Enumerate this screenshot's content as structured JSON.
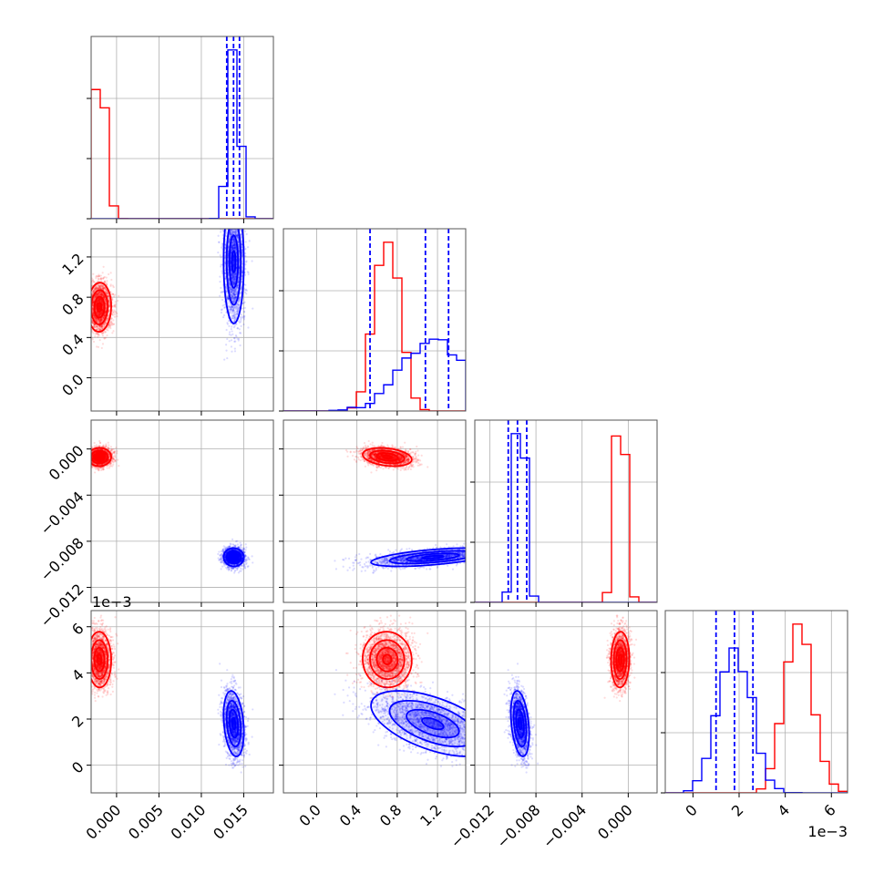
{
  "chart_data": {
    "type": "corner",
    "colors": {
      "red_series": "#ff0000",
      "blue_series": "#0000ff",
      "grid": "#b0b0b0",
      "frame": "#555555"
    },
    "grid": true,
    "quantile_lines": "dashed, blue series only",
    "offset_labels": {
      "p3_y": "1e−3",
      "p3_x": "1e−3"
    },
    "params": [
      {
        "range": [
          -0.003,
          0.0185
        ],
        "ticks": [
          "0.000",
          "0.005",
          "0.010",
          "0.015"
        ],
        "tick_values": [
          0.0,
          0.005,
          0.01,
          0.015
        ]
      },
      {
        "range": [
          -0.33,
          1.48
        ],
        "ticks": [
          "0.0",
          "0.4",
          "0.8",
          "1.2"
        ],
        "tick_values": [
          0.0,
          0.4,
          0.8,
          1.2
        ]
      },
      {
        "range": [
          -0.0133,
          0.0025
        ],
        "ticks": [
          "−0.012",
          "−0.008",
          "−0.004",
          "0.000"
        ],
        "tick_values": [
          -0.012,
          -0.008,
          -0.004,
          0.0
        ]
      },
      {
        "range": [
          -0.0012,
          0.0067
        ],
        "ticks": [
          "0",
          "2",
          "4",
          "6"
        ],
        "tick_values": [
          0.0,
          0.002,
          0.004,
          0.006
        ]
      }
    ],
    "series": [
      {
        "color": "#ff0000",
        "means": [
          -0.002,
          0.7,
          -0.0007,
          0.0046
        ],
        "sds": [
          0.0007,
          0.12,
          0.0004,
          0.0006
        ],
        "corr": [
          [
            0,
            1,
            0.05
          ],
          [
            0,
            2,
            0.0
          ],
          [
            0,
            3,
            0.0
          ],
          [
            1,
            2,
            -0.3
          ],
          [
            1,
            3,
            0.0
          ],
          [
            2,
            3,
            0.0
          ]
        ]
      },
      {
        "color": "#0000ff",
        "means": [
          0.0138,
          1.15,
          -0.0094,
          0.0018
        ],
        "sds": [
          0.0006,
          0.3,
          0.0004,
          0.0007
        ],
        "corr": [
          [
            0,
            1,
            0.0
          ],
          [
            0,
            2,
            0.0
          ],
          [
            0,
            3,
            -0.3
          ],
          [
            1,
            2,
            0.55
          ],
          [
            1,
            3,
            -0.55
          ],
          [
            2,
            3,
            0.0
          ]
        ]
      }
    ],
    "blue_quantiles": [
      [
        0.013,
        0.0138,
        0.0145
      ],
      [
        0.53,
        1.08,
        1.31
      ],
      [
        -0.0104,
        -0.0096,
        -0.0088
      ],
      [
        0.001,
        0.0018,
        0.0026
      ]
    ]
  }
}
